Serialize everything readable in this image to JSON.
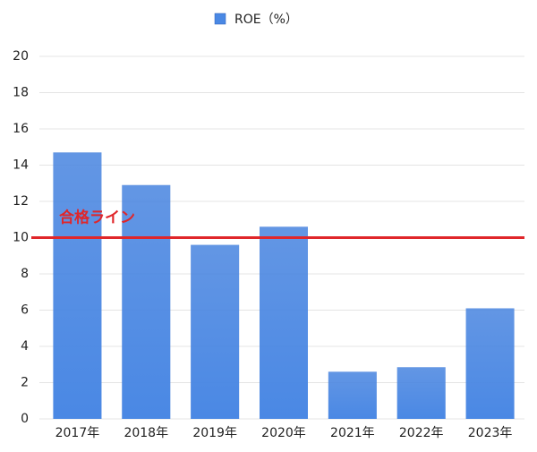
{
  "chart_data": {
    "type": "bar",
    "categories": [
      "2017年",
      "2018年",
      "2019年",
      "2020年",
      "2021年",
      "2022年",
      "2023年"
    ],
    "series": [
      {
        "name": "ROE（%）",
        "color": "#4a88e4",
        "values": [
          14.7,
          12.9,
          9.6,
          10.6,
          2.6,
          2.85,
          6.1
        ]
      }
    ],
    "ylim": [
      0,
      20
    ],
    "yticks": [
      0,
      2,
      4,
      6,
      8,
      10,
      12,
      14,
      16,
      18,
      20
    ],
    "grid": true,
    "legend": "top",
    "reference_line": {
      "value": 10,
      "label": "合格ライン",
      "color": "#e0262a"
    }
  }
}
